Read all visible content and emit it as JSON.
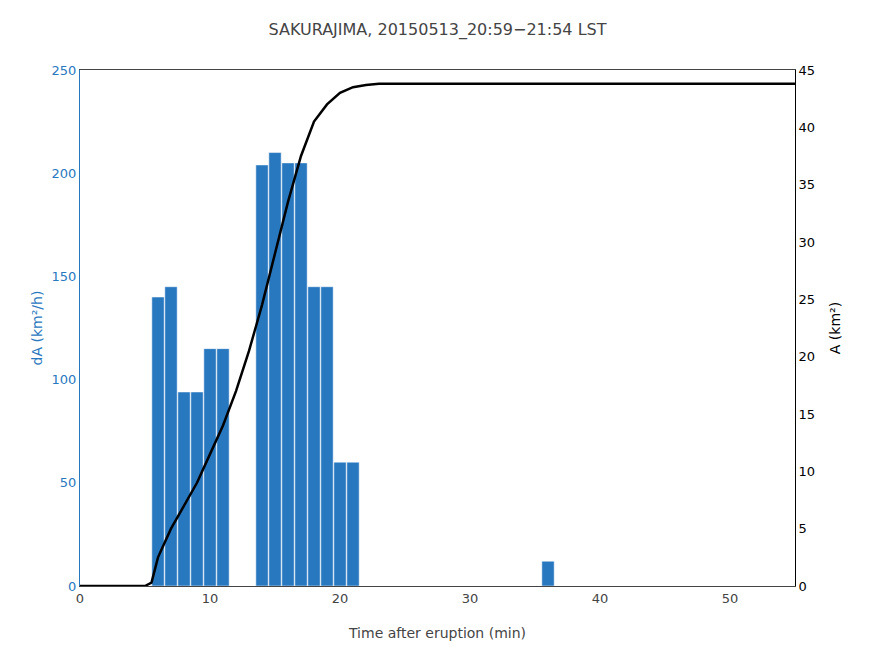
{
  "chart_data": {
    "type": "bar",
    "title": "SAKURAJIMA, 20150513_20:59−21:54 LST",
    "xlabel": "Time after eruption (min)",
    "ylabel": "dA (km²/h)",
    "y2label": "A (km²)",
    "series": [
      {
        "type": "bar",
        "color": "#2878c0",
        "x": [
          6,
          7,
          8,
          9,
          10,
          11,
          14,
          15,
          16,
          17,
          18,
          19,
          20,
          21,
          36
        ],
        "values": [
          140,
          145,
          94,
          94,
          115,
          115,
          204,
          210,
          205,
          205,
          145,
          145,
          60,
          60,
          12
        ]
      },
      {
        "type": "line",
        "color": "black",
        "axis": "y2",
        "x": [
          0,
          3,
          4,
          5,
          5.5,
          6,
          7,
          8,
          9,
          10,
          11,
          12,
          13,
          14,
          15,
          16,
          17,
          18,
          19,
          20,
          21,
          22,
          23,
          55
        ],
        "values": [
          0,
          0,
          0,
          0,
          0.3,
          2.5,
          5.0,
          7.0,
          9.0,
          11.5,
          14.0,
          17.0,
          20.5,
          24.5,
          29.0,
          33.5,
          37.5,
          40.5,
          42.0,
          43.0,
          43.5,
          43.7,
          43.8,
          43.8
        ]
      }
    ],
    "xlim": [
      0,
      55
    ],
    "xticks": [
      0,
      10,
      20,
      30,
      40,
      50
    ],
    "ylim": [
      0,
      250
    ],
    "yticks": [
      0,
      50,
      100,
      150,
      200,
      250
    ],
    "y2lim": [
      0,
      45
    ],
    "y2ticks": [
      0,
      5,
      10,
      15,
      20,
      25,
      30,
      35,
      40,
      45
    ],
    "grid": false
  }
}
